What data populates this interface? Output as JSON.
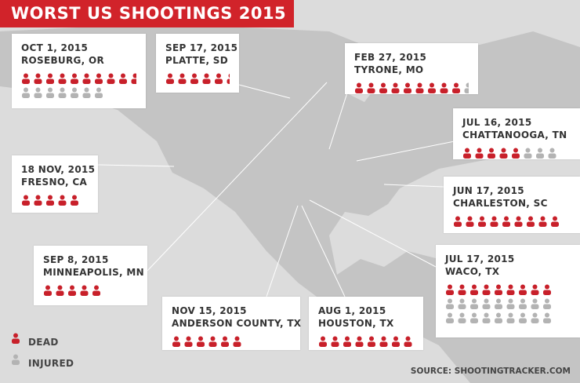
{
  "header": {
    "title": "WORST US SHOOTINGS 2015"
  },
  "cards": [
    {
      "date": "OCT 1, 2015",
      "place": "ROSEBURG, OR",
      "dead": 10,
      "injured": 7
    },
    {
      "date": "SEP 17, 2015",
      "place": "PLATTE, SD",
      "dead": 6
    },
    {
      "date": "FEB 27, 2015",
      "place": "TYRONE, MO",
      "dead": 9,
      "injured": 1
    },
    {
      "date": "JUL 16, 2015",
      "place": "CHATTANOOGA, TN",
      "dead": 5,
      "injured": 3
    },
    {
      "date": "JUN 17, 2015",
      "place": "CHARLESTON, SC",
      "dead": 9
    },
    {
      "date": "JUL 17, 2015",
      "place": "WACO, TX",
      "dead": 9,
      "injured": 18
    },
    {
      "date": "AUG 1, 2015",
      "place": "HOUSTON, TX",
      "dead": 8
    },
    {
      "date": "NOV 15, 2015",
      "place": "ANDERSON COUNTY, TX",
      "dead": 6
    },
    {
      "date": "SEP 8, 2015",
      "place": "MINNEAPOLIS, MN",
      "dead": 5
    },
    {
      "date": "18 NOV, 2015",
      "place": "FRESNO, CA",
      "dead": 5
    }
  ],
  "legend": {
    "dead": "DEAD",
    "injured": "INJURED"
  },
  "source": "SOURCE: SHOOTINGTRACKER.COM"
}
